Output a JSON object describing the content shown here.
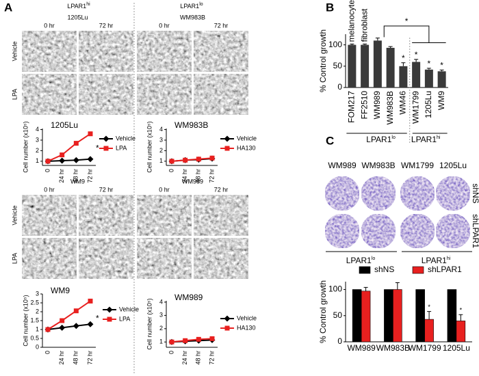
{
  "figure": {
    "panel_letters": [
      "A",
      "B",
      "C"
    ],
    "a_headers": [
      {
        "label": "LPAR1",
        "sup": "hi"
      },
      {
        "label": "LPAR1",
        "sup": "lo"
      }
    ],
    "a_blocks": [
      {
        "cell_line": "1205Lu",
        "times": [
          "0 hr",
          "72 hr"
        ],
        "rows": [
          "Vehicle",
          "LPA"
        ]
      },
      {
        "cell_line": "WM983B",
        "times": [
          "0 hr",
          "72 hr"
        ]
      },
      {
        "cell_line": "WM9",
        "times": [
          "0 hr",
          "72 hr"
        ],
        "rows": [
          "Vehicle",
          "LPA"
        ]
      },
      {
        "cell_line": "WM989",
        "times": [
          "0 hr",
          "72 hr"
        ]
      }
    ],
    "c_plates": {
      "columns": [
        "WM989",
        "WM983B",
        "WM1799",
        "1205Lu"
      ],
      "rows": [
        "shNS",
        "shLPAR1"
      ],
      "groups": [
        {
          "label": "LPAR1",
          "sup": "lo"
        },
        {
          "label": "LPAR1",
          "sup": "hi"
        }
      ]
    }
  },
  "chart_data": [
    {
      "type": "line",
      "title": "1205Lu",
      "y_label": "Cell number (x10⁵)",
      "categories": [
        "0",
        "24 hr",
        "48 hr",
        "72 hr"
      ],
      "series": [
        {
          "name": "Vehicle",
          "color": "#000000",
          "marker": "diamond",
          "values": [
            1,
            1.05,
            1.1,
            1.2
          ]
        },
        {
          "name": "LPA",
          "color": "#e8201f",
          "marker": "square",
          "values": [
            1,
            1.6,
            2.7,
            3.6
          ]
        }
      ],
      "ylim": [
        0.6,
        4.1
      ],
      "yticks": [
        1,
        2,
        3,
        4
      ],
      "annotation": "*"
    },
    {
      "type": "line",
      "title": "WM983B",
      "y_label": "Cell number (x10⁵)",
      "categories": [
        "0",
        "24 hr",
        "48 hr",
        "72 hr"
      ],
      "series": [
        {
          "name": "Vehicle",
          "color": "#000000",
          "marker": "diamond",
          "values": [
            1,
            1.1,
            1.15,
            1.25
          ]
        },
        {
          "name": "HA130",
          "color": "#e8201f",
          "marker": "square",
          "values": [
            1,
            1.1,
            1.2,
            1.3
          ]
        }
      ],
      "ylim": [
        0.6,
        4.1
      ],
      "yticks": [
        1,
        2,
        3,
        4
      ]
    },
    {
      "type": "line",
      "title": "WM9",
      "y_label": "Cell number (x10⁵)",
      "categories": [
        "0",
        "24 hr",
        "48 hr",
        "72 hr"
      ],
      "series": [
        {
          "name": "Vehicle",
          "color": "#000000",
          "marker": "diamond",
          "values": [
            1,
            1.1,
            1.2,
            1.3
          ]
        },
        {
          "name": "LPA",
          "color": "#e8201f",
          "marker": "square",
          "values": [
            1,
            1.5,
            2.05,
            2.6
          ]
        }
      ],
      "ylim": [
        0,
        3
      ],
      "yticks": [
        0,
        0.5,
        1,
        1.5,
        2,
        2.5,
        3
      ],
      "annotation": "*"
    },
    {
      "type": "line",
      "title": "WM989",
      "y_label": "Cell number (x10⁵)",
      "categories": [
        "0",
        "24 hr",
        "48 hr",
        "72 hr"
      ],
      "series": [
        {
          "name": "Vehicle",
          "color": "#000000",
          "marker": "diamond",
          "values": [
            1,
            1.05,
            1.1,
            1.15
          ]
        },
        {
          "name": "HA130",
          "color": "#e8201f",
          "marker": "square",
          "values": [
            1,
            1.1,
            1.2,
            1.25
          ]
        }
      ],
      "ylim": [
        0.6,
        4.1
      ],
      "yticks": [
        1,
        2,
        3,
        4
      ]
    },
    {
      "type": "bar",
      "y_label": "% Control growth",
      "categories": [
        "FOM217",
        "FF2510",
        "WM989",
        "WM983B",
        "WM46",
        "WM1799",
        "1205Lu",
        "WM9"
      ],
      "values": [
        100,
        100,
        110,
        93,
        50,
        60,
        42,
        38
      ],
      "errors": [
        2,
        2,
        6,
        3,
        8,
        6,
        3,
        3
      ],
      "color": "#3a3a3a",
      "bar_labels": [
        "melanocyte",
        "fibroblast",
        null,
        null,
        "*",
        "*",
        "*",
        "*"
      ],
      "bracket_label": "*",
      "groups": [
        {
          "label": "LPAR1",
          "sup": "lo"
        },
        {
          "label": "LPAR1",
          "sup": "hi"
        }
      ],
      "ylim": [
        0,
        125
      ],
      "yticks": [
        0,
        50,
        100
      ]
    },
    {
      "type": "grouped_bar",
      "y_label": "% Control growth",
      "categories": [
        "WM989",
        "WM983B",
        "WM1799",
        "1205Lu"
      ],
      "series": [
        {
          "name": "shNS",
          "color": "#000000",
          "values": [
            100,
            100,
            100,
            100
          ]
        },
        {
          "name": "shLPAR1",
          "color": "#e8201f",
          "values": [
            97,
            100,
            43,
            40
          ],
          "errors": [
            7,
            13,
            15,
            12
          ]
        }
      ],
      "bar_labels": [
        null,
        null,
        "*",
        "*"
      ],
      "ylim": [
        0,
        115
      ],
      "yticks": [
        0,
        50,
        100
      ]
    }
  ]
}
